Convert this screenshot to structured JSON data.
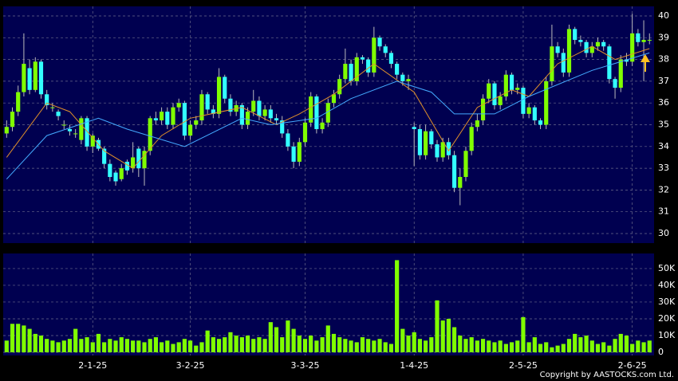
{
  "chart_data": {
    "type": "candlestick",
    "up_color": "#80ff00",
    "down_color": "#33ffff",
    "volume_color": "#80ff00",
    "panel_color": "#000050",
    "grid": true,
    "xlim": [
      -0.6,
      112.8
    ],
    "xticks": [
      {
        "value": 15,
        "label": "2-1-25"
      },
      {
        "value": 32,
        "label": "3-2-25"
      },
      {
        "value": 52,
        "label": "3-3-25"
      },
      {
        "value": 71,
        "label": "1-4-25"
      },
      {
        "value": 90,
        "label": "2-5-25"
      },
      {
        "value": 109,
        "label": "2-6-25"
      }
    ],
    "ylim": [
      29.56,
      40.44
    ],
    "yticks": [
      30,
      31,
      32,
      33,
      34,
      35,
      36,
      37,
      38,
      39,
      40
    ],
    "ohlc": [
      [
        34.6,
        35.2,
        34.4,
        34.9
      ],
      [
        34.9,
        35.8,
        34.7,
        35.6
      ],
      [
        35.6,
        36.8,
        35.4,
        36.5
      ],
      [
        36.5,
        39.2,
        36.3,
        37.8
      ],
      [
        37.6,
        38.0,
        36.4,
        36.6
      ],
      [
        36.6,
        38.1,
        36.5,
        37.9
      ],
      [
        37.9,
        38.0,
        36.2,
        36.4
      ],
      [
        36.4,
        36.6,
        35.7,
        35.9
      ],
      [
        35.8,
        36.0,
        35.6,
        35.8
      ],
      [
        35.6,
        35.7,
        35.2,
        35.4
      ],
      [
        35.0,
        35.2,
        34.8,
        35.0
      ],
      [
        34.8,
        35.0,
        34.5,
        34.7
      ],
      [
        34.6,
        34.8,
        34.4,
        34.6
      ],
      [
        34.3,
        35.4,
        34.1,
        35.3
      ],
      [
        35.3,
        35.4,
        33.8,
        34.0
      ],
      [
        34.0,
        34.6,
        33.7,
        34.5
      ],
      [
        34.3,
        34.4,
        33.8,
        33.9
      ],
      [
        33.9,
        34.0,
        33.0,
        33.2
      ],
      [
        33.2,
        33.4,
        32.4,
        32.6
      ],
      [
        32.8,
        32.9,
        32.2,
        32.4
      ],
      [
        32.5,
        33.2,
        32.4,
        33.0
      ],
      [
        33.3,
        33.4,
        32.7,
        32.9
      ],
      [
        33.0,
        34.2,
        32.8,
        33.5
      ],
      [
        33.9,
        34.0,
        32.6,
        33.0
      ],
      [
        33.0,
        34.0,
        32.2,
        33.8
      ],
      [
        33.8,
        35.4,
        33.6,
        35.3
      ],
      [
        35.3,
        35.6,
        35.0,
        35.2
      ],
      [
        35.2,
        35.8,
        35.0,
        35.6
      ],
      [
        35.6,
        35.8,
        34.8,
        35.0
      ],
      [
        35.0,
        36.0,
        34.8,
        35.8
      ],
      [
        35.8,
        36.2,
        35.6,
        36.0
      ],
      [
        36.0,
        36.1,
        34.3,
        34.5
      ],
      [
        34.5,
        35.2,
        34.3,
        35.0
      ],
      [
        35.0,
        35.4,
        34.8,
        35.2
      ],
      [
        35.2,
        36.6,
        35.0,
        36.4
      ],
      [
        36.4,
        36.5,
        35.5,
        35.7
      ],
      [
        35.7,
        35.9,
        35.3,
        35.5
      ],
      [
        35.5,
        37.6,
        35.3,
        37.2
      ],
      [
        37.2,
        37.3,
        36.0,
        36.2
      ],
      [
        36.2,
        36.4,
        35.4,
        35.6
      ],
      [
        35.6,
        36.1,
        35.4,
        35.9
      ],
      [
        35.9,
        36.0,
        34.8,
        35.0
      ],
      [
        35.0,
        35.8,
        34.8,
        35.6
      ],
      [
        35.6,
        36.6,
        35.4,
        36.1
      ],
      [
        36.1,
        36.3,
        35.2,
        35.4
      ],
      [
        35.4,
        35.9,
        35.2,
        35.7
      ],
      [
        35.7,
        35.9,
        35.1,
        35.3
      ],
      [
        35.3,
        35.5,
        35.0,
        35.2
      ],
      [
        35.2,
        35.4,
        34.4,
        34.6
      ],
      [
        34.6,
        34.8,
        33.8,
        34.0
      ],
      [
        34.0,
        34.2,
        33.0,
        33.3
      ],
      [
        33.3,
        34.4,
        33.1,
        34.2
      ],
      [
        34.2,
        35.3,
        34.0,
        35.1
      ],
      [
        35.1,
        36.5,
        34.9,
        36.3
      ],
      [
        36.3,
        36.4,
        34.6,
        34.8
      ],
      [
        34.8,
        35.3,
        34.6,
        35.1
      ],
      [
        35.1,
        36.2,
        34.9,
        36.0
      ],
      [
        36.0,
        36.6,
        35.8,
        36.4
      ],
      [
        36.4,
        37.3,
        36.2,
        37.1
      ],
      [
        37.1,
        38.5,
        36.9,
        37.8
      ],
      [
        37.8,
        38.0,
        36.8,
        37.0
      ],
      [
        37.0,
        38.3,
        36.8,
        38.1
      ],
      [
        38.1,
        38.2,
        37.8,
        38.0
      ],
      [
        38.0,
        38.1,
        37.2,
        37.4
      ],
      [
        37.4,
        39.5,
        37.2,
        39.0
      ],
      [
        39.0,
        39.1,
        38.4,
        38.6
      ],
      [
        38.6,
        38.7,
        38.1,
        38.3
      ],
      [
        38.3,
        38.4,
        37.6,
        37.8
      ],
      [
        37.8,
        37.9,
        37.1,
        37.3
      ],
      [
        37.3,
        37.4,
        36.8,
        37.0
      ],
      [
        37.0,
        37.3,
        36.6,
        37.1
      ],
      [
        34.9,
        35.1,
        33.1,
        34.8
      ],
      [
        34.8,
        35.0,
        33.4,
        33.6
      ],
      [
        33.6,
        35.0,
        33.4,
        34.7
      ],
      [
        34.7,
        34.8,
        33.9,
        34.1
      ],
      [
        34.1,
        34.3,
        33.3,
        33.5
      ],
      [
        33.5,
        34.4,
        33.3,
        34.2
      ],
      [
        34.2,
        34.4,
        33.4,
        33.6
      ],
      [
        33.6,
        33.8,
        31.9,
        32.1
      ],
      [
        32.1,
        33.0,
        31.3,
        32.6
      ],
      [
        32.6,
        34.0,
        32.4,
        33.8
      ],
      [
        33.8,
        35.1,
        33.6,
        34.9
      ],
      [
        34.9,
        35.5,
        34.7,
        35.2
      ],
      [
        35.2,
        36.4,
        35.0,
        36.2
      ],
      [
        36.2,
        37.1,
        36.0,
        36.9
      ],
      [
        36.9,
        37.0,
        35.7,
        35.9
      ],
      [
        35.9,
        36.5,
        35.7,
        36.3
      ],
      [
        36.3,
        37.5,
        36.1,
        37.3
      ],
      [
        37.3,
        37.4,
        36.4,
        36.6
      ],
      [
        36.6,
        36.9,
        36.4,
        36.7
      ],
      [
        36.7,
        36.8,
        35.3,
        35.5
      ],
      [
        35.5,
        36.0,
        35.3,
        35.8
      ],
      [
        35.8,
        35.9,
        35.0,
        35.2
      ],
      [
        35.2,
        35.3,
        34.8,
        35.0
      ],
      [
        35.0,
        37.2,
        34.8,
        37.0
      ],
      [
        37.0,
        39.6,
        36.8,
        38.6
      ],
      [
        38.6,
        38.8,
        38.1,
        38.3
      ],
      [
        38.3,
        38.5,
        37.2,
        37.4
      ],
      [
        37.4,
        39.6,
        37.2,
        39.4
      ],
      [
        39.4,
        39.5,
        38.7,
        38.9
      ],
      [
        38.9,
        39.1,
        38.6,
        38.8
      ],
      [
        38.8,
        38.9,
        38.1,
        38.3
      ],
      [
        38.3,
        38.8,
        38.1,
        38.6
      ],
      [
        38.6,
        39.0,
        38.4,
        38.8
      ],
      [
        38.8,
        38.9,
        38.4,
        38.6
      ],
      [
        38.6,
        38.7,
        36.9,
        37.1
      ],
      [
        37.1,
        37.2,
        36.2,
        36.7
      ],
      [
        36.7,
        38.2,
        36.5,
        38.0
      ],
      [
        38.0,
        38.3,
        37.7,
        37.9
      ],
      [
        37.9,
        40.1,
        37.7,
        39.2
      ],
      [
        39.2,
        39.4,
        38.6,
        38.8
      ],
      [
        38.8,
        39.8,
        37.0,
        38.9
      ],
      [
        38.9,
        39.2,
        38.7,
        38.9
      ]
    ],
    "series": [
      {
        "color": "#e0902a",
        "x": [
          0,
          7,
          11,
          17,
          22,
          27,
          32,
          41,
          47,
          51,
          57,
          64,
          71,
          77,
          82,
          88,
          91,
          96,
          102,
          106,
          112
        ],
        "values": [
          33.5,
          36.0,
          35.6,
          33.8,
          33.0,
          34.5,
          35.3,
          35.8,
          35.0,
          35.5,
          36.4,
          37.8,
          36.5,
          33.8,
          35.8,
          36.6,
          36.3,
          37.8,
          38.6,
          38.0,
          38.5
        ]
      },
      {
        "color": "#44aaff",
        "x": [
          0,
          7,
          16,
          21,
          31,
          41,
          46,
          54,
          60,
          68,
          74,
          78,
          85,
          91,
          102,
          112
        ],
        "values": [
          32.5,
          34.5,
          35.3,
          34.8,
          34.0,
          35.3,
          35.0,
          35.3,
          36.2,
          37.0,
          36.5,
          35.5,
          35.5,
          36.3,
          37.5,
          38.3
        ]
      }
    ],
    "vlim": [
      -1900,
      59000
    ],
    "vticks": [
      0,
      {
        "value": 10000,
        "label": "10K"
      },
      {
        "value": 20000,
        "label": "20K"
      },
      {
        "value": 30000,
        "label": "30K"
      },
      {
        "value": 40000,
        "label": "40K"
      },
      {
        "value": 50000,
        "label": "50K"
      }
    ],
    "volume": [
      7000,
      17000,
      17000,
      16000,
      14000,
      11000,
      10000,
      8000,
      7000,
      6000,
      7000,
      8000,
      14000,
      8000,
      9000,
      6000,
      11000,
      6000,
      8000,
      7000,
      9000,
      8000,
      7000,
      7000,
      6000,
      8000,
      9000,
      6000,
      7000,
      5000,
      6000,
      8000,
      7000,
      4000,
      6000,
      13000,
      9000,
      8000,
      9000,
      12000,
      10000,
      9000,
      10000,
      8000,
      9000,
      8000,
      18000,
      15000,
      9000,
      19000,
      14000,
      10000,
      8000,
      10000,
      7000,
      9000,
      16000,
      11000,
      9000,
      8000,
      7000,
      6000,
      9000,
      8000,
      7000,
      8000,
      6000,
      5000,
      55000,
      14000,
      10000,
      12000,
      8000,
      7000,
      9000,
      31000,
      19000,
      20000,
      15000,
      10000,
      8000,
      9000,
      7000,
      8000,
      7000,
      6000,
      7000,
      5000,
      6000,
      7000,
      21000,
      6000,
      9000,
      5000,
      6000,
      3000,
      4000,
      5000,
      8000,
      11000,
      9000,
      10000,
      7000,
      5000,
      6000,
      4000,
      8000,
      11000,
      10000,
      5000,
      7000,
      6000,
      7000
    ],
    "copyright": "Copyright by AASTOCKS.com Ltd."
  }
}
